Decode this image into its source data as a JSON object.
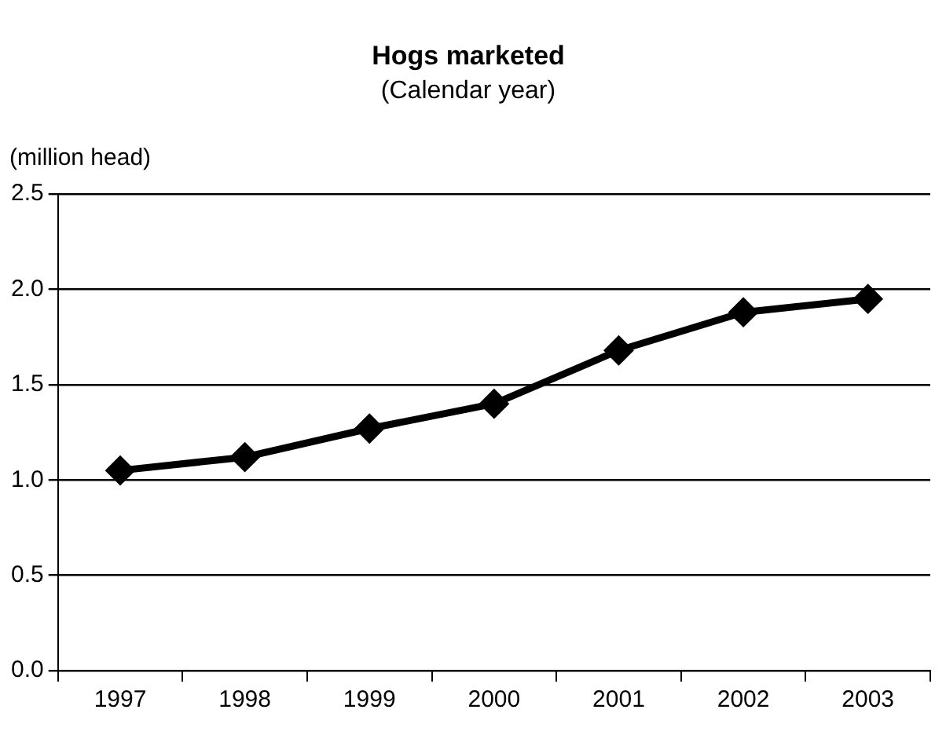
{
  "chart_data": {
    "type": "line",
    "title": "Hogs marketed",
    "subtitle": "(Calendar year)",
    "ylabel": "(million head)",
    "categories": [
      "1997",
      "1998",
      "1999",
      "2000",
      "2001",
      "2002",
      "2003"
    ],
    "series": [
      {
        "color": "#000000",
        "values": [
          1.05,
          1.12,
          1.27,
          1.4,
          1.68,
          1.88,
          1.95
        ]
      }
    ],
    "ylim": [
      0,
      2.5
    ],
    "yticks": [
      {
        "value": 0,
        "label": "0.0"
      },
      0.5,
      {
        "value": 1,
        "label": "1.0"
      },
      1.5,
      {
        "value": 2,
        "label": "2.0"
      },
      2.5
    ],
    "grid": "y",
    "marker": "diamond",
    "line_style": "solid"
  }
}
